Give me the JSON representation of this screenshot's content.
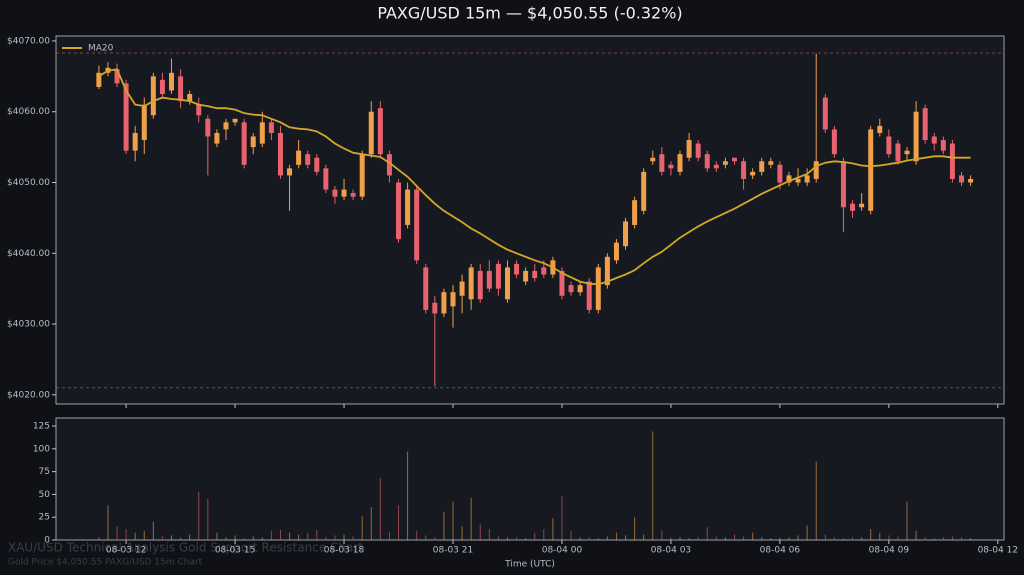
{
  "chart_data": [
    {
      "type": "candlestick",
      "title": "PAXG/USD 15m — $4,050.55 (-0.32%)",
      "annotations": [
        "XAU/USD Technical Analysis Gold Support Resistance Chart",
        "Gold Price $4,050.55 PAXG/USD 15m Chart"
      ],
      "up_color": "#f0a04b",
      "down_color": "#e8636f",
      "x": [
        11.25,
        11.5,
        11.75,
        12,
        12.25,
        12.5,
        12.75,
        13,
        13.25,
        13.5,
        13.75,
        14,
        14.25,
        14.5,
        14.75,
        15,
        15.25,
        15.5,
        15.75,
        16,
        16.25,
        16.5,
        16.75,
        17,
        17.25,
        17.5,
        17.75,
        18,
        18.25,
        18.5,
        18.75,
        19,
        19.25,
        19.5,
        19.75,
        20,
        20.25,
        20.5,
        20.75,
        21,
        21.25,
        21.5,
        21.75,
        22,
        22.25,
        22.5,
        22.75,
        23,
        23.25,
        23.5,
        23.75,
        24,
        24.25,
        24.5,
        24.75,
        25,
        25.25,
        25.5,
        25.75,
        26,
        26.25,
        26.5,
        26.75,
        27,
        27.25,
        27.5,
        27.75,
        28,
        28.25,
        28.5,
        28.75,
        29,
        29.25,
        29.5,
        29.75,
        30,
        30.25,
        30.5,
        30.75,
        31,
        31.25,
        31.5,
        31.75,
        32,
        32.25,
        32.5,
        32.75,
        33,
        33.25,
        33.5,
        33.75,
        34,
        34.25,
        34.5,
        34.75,
        35,
        35.25
      ],
      "open": [
        4063.5,
        4065.5,
        4066,
        4064,
        4054.5,
        4056,
        4059.5,
        4064.5,
        4063,
        4065,
        4061.5,
        4061,
        4059,
        4055.5,
        4057.5,
        4058.5,
        4058.5,
        4055,
        4055.5,
        4058.5,
        4057,
        4051,
        4052.5,
        4054,
        4053.5,
        4052,
        4049,
        4048,
        4048.5,
        4048,
        4054,
        4060.5,
        4054,
        4050,
        4044,
        4049,
        4038,
        4033,
        4031.5,
        4032.5,
        4034,
        4033.5,
        4037.5,
        4037.5,
        4038.5,
        4033.5,
        4038.5,
        4036,
        4037.5,
        4038,
        4037,
        4037.5,
        4035.5,
        4034.5,
        4036,
        4032,
        4035.5,
        4039,
        4041,
        4044,
        4046,
        4053,
        4054,
        4052.5,
        4051.5,
        4053.5,
        4055.5,
        4054,
        4052.5,
        4052.5,
        4053.5,
        4053,
        4051,
        4051.5,
        4052.5,
        4052.5,
        4050,
        4050,
        4050,
        4050.5,
        4062,
        4057.5,
        4053,
        4047,
        4046.5,
        4046,
        4057,
        4056.5,
        4055.5,
        4054,
        4053,
        4060.5,
        4056.5,
        4056,
        4055.5,
        4051,
        4050
      ],
      "high": [
        4066.5,
        4067,
        4066.8,
        4064.5,
        4058,
        4062,
        4065.5,
        4065.5,
        4067.5,
        4066,
        4063,
        4062,
        4059.5,
        4057.5,
        4059,
        4059,
        4059,
        4057,
        4060,
        4059,
        4058,
        4052.5,
        4056,
        4054.5,
        4054,
        4052.5,
        4049.5,
        4050.5,
        4049,
        4054.5,
        4061.5,
        4061.5,
        4054.5,
        4050.5,
        4050,
        4049.5,
        4038.5,
        4034,
        4035,
        4035.5,
        4037,
        4038.5,
        4038.5,
        4039,
        4039,
        4039,
        4039,
        4038,
        4038.5,
        4039,
        4039.5,
        4038,
        4036,
        4036,
        4036.5,
        4038.5,
        4040,
        4042,
        4045,
        4048,
        4052,
        4054.5,
        4055,
        4053,
        4054.5,
        4057,
        4056,
        4054.5,
        4053,
        4053.5,
        4053.5,
        4053.5,
        4052,
        4053.5,
        4053.5,
        4053,
        4051.5,
        4052,
        4052,
        4068.2,
        4062.5,
        4058,
        4053.5,
        4047.5,
        4048.5,
        4058,
        4059,
        4057.5,
        4056,
        4055,
        4061.5,
        4061,
        4057,
        4056.5,
        4056,
        4051.5,
        4051
      ],
      "low": [
        4063.2,
        4065,
        4063.5,
        4054,
        4053,
        4054,
        4059,
        4062,
        4062.5,
        4060.5,
        4061,
        4058.5,
        4051,
        4055,
        4056,
        4058,
        4052,
        4054,
        4055,
        4056,
        4050.5,
        4046,
        4052,
        4052,
        4051,
        4048.5,
        4047,
        4047.5,
        4047.5,
        4047.5,
        4053.5,
        4053.5,
        4050,
        4041.5,
        4043.5,
        4038.5,
        4031.5,
        4021.2,
        4031,
        4029.5,
        4031.5,
        4032,
        4033,
        4034.5,
        4034,
        4033,
        4036.5,
        4035.5,
        4036,
        4036.5,
        4036.5,
        4033.5,
        4034,
        4034,
        4031.5,
        4031.5,
        4035,
        4038.5,
        4040.5,
        4043.5,
        4045.5,
        4052.5,
        4051,
        4051,
        4051,
        4053,
        4053,
        4051.5,
        4051.5,
        4052,
        4052.5,
        4049,
        4050.5,
        4051,
        4052,
        4049,
        4049.5,
        4049.5,
        4049.5,
        4050,
        4057,
        4053.5,
        4043,
        4045,
        4046,
        4045.5,
        4056.5,
        4053.5,
        4052.5,
        4053,
        4052.5,
        4055.5,
        4054.5,
        4054,
        4050,
        4049.5,
        4049.5
      ],
      "close": [
        4065.5,
        4066.2,
        4064,
        4054.5,
        4057,
        4061,
        4065,
        4062.5,
        4065.5,
        4061.5,
        4062.5,
        4059.5,
        4056.5,
        4057,
        4058.5,
        4059,
        4052.5,
        4056.5,
        4058.5,
        4057,
        4051,
        4052,
        4054.5,
        4052.5,
        4051.5,
        4049,
        4048,
        4049,
        4048,
        4054,
        4060,
        4054,
        4051,
        4042,
        4049,
        4039,
        4032,
        4031.5,
        4034.5,
        4034.5,
        4036,
        4038,
        4033.5,
        4035,
        4035,
        4038,
        4037,
        4037.5,
        4036.5,
        4037,
        4039,
        4034,
        4034.5,
        4035.5,
        4032,
        4038,
        4039.5,
        4041.5,
        4044.5,
        4047.5,
        4051.5,
        4053.5,
        4051.5,
        4052,
        4054,
        4056,
        4053.5,
        4052,
        4052,
        4053,
        4053,
        4050.5,
        4051.5,
        4053,
        4053,
        4050,
        4051,
        4050.5,
        4051,
        4053,
        4057.5,
        4054,
        4046.5,
        4046,
        4047,
        4057.5,
        4058,
        4054,
        4053,
        4054.5,
        4060,
        4056,
        4055.5,
        4054.5,
        4050.5,
        4050,
        4050.5
      ],
      "series": [
        {
          "name": "MA20",
          "color": "#d4a62a",
          "values": [
            4065,
            4065.8,
            4066,
            4063,
            4061,
            4060.8,
            4061.5,
            4062,
            4061.8,
            4061.7,
            4061.5,
            4061,
            4060.8,
            4060.5,
            4060.5,
            4060.3,
            4059.8,
            4059.6,
            4059.5,
            4059,
            4058.5,
            4057.8,
            4057.6,
            4057.5,
            4057.2,
            4056.5,
            4055.5,
            4054.8,
            4054.2,
            4054,
            4053.8,
            4053.6,
            4052.8,
            4051.8,
            4050.8,
            4049.5,
            4048.2,
            4047,
            4046,
            4045.2,
            4044.4,
            4043.5,
            4042.8,
            4042,
            4041.2,
            4040.5,
            4040,
            4039.5,
            4039,
            4038.6,
            4038,
            4037.2,
            4036.6,
            4036,
            4035.7,
            4035.6,
            4036,
            4036.5,
            4037,
            4037.6,
            4038.6,
            4039.5,
            4040.2,
            4041.2,
            4042.2,
            4043,
            4043.8,
            4044.5,
            4045.1,
            4045.7,
            4046.3,
            4047,
            4047.7,
            4048.4,
            4049,
            4049.6,
            4050.2,
            4050.7,
            4051.2,
            4052.3,
            4052.8,
            4053,
            4052.9,
            4052.7,
            4052.4,
            4052.3,
            4052.4,
            4052.6,
            4052.8,
            4053.1,
            4053.3,
            4053.5,
            4053.7,
            4053.7,
            4053.5,
            4053.5,
            4053.5
          ]
        }
      ],
      "resistance": 4068.3,
      "support": 4021.0,
      "xlim": [
        10.07,
        36.17
      ],
      "ylim": [
        4018.7,
        4070.7
      ],
      "yticks": [
        {
          "value": 4020,
          "label": "$4020.00"
        },
        {
          "value": 4030,
          "label": "$4030.00"
        },
        {
          "value": 4040,
          "label": "$4040.00"
        },
        {
          "value": 4050,
          "label": "$4050.00"
        },
        {
          "value": 4060,
          "label": "$4060.00"
        },
        {
          "value": 4070,
          "label": "$4070.00"
        }
      ],
      "legend": "upper left"
    },
    {
      "type": "bar",
      "x_label": "Time (UTC)",
      "values": [
        3,
        38,
        15,
        12,
        8,
        10,
        20,
        4,
        5,
        3,
        6,
        53,
        45,
        8,
        3,
        5,
        2,
        4,
        3,
        10,
        11,
        8,
        6,
        8,
        11,
        3,
        5,
        6,
        4,
        26,
        36,
        68,
        9,
        38,
        97,
        10,
        5,
        3,
        31,
        42,
        15,
        46,
        17,
        12,
        4,
        3,
        3,
        2,
        8,
        12,
        24,
        48,
        10,
        3,
        3,
        2,
        4,
        8,
        5,
        25,
        6,
        119,
        10,
        3,
        3,
        2,
        3,
        14,
        4,
        3,
        6,
        4,
        8,
        3,
        2,
        3,
        3,
        5,
        16,
        86,
        6,
        3,
        2,
        3,
        3,
        12,
        8,
        5,
        4,
        42,
        10,
        3,
        2,
        3,
        4,
        3,
        2
      ],
      "ylim": [
        0,
        133.8
      ],
      "yticks": [
        0,
        25,
        50,
        75,
        100,
        125
      ],
      "xlim": [
        10.07,
        36.17
      ],
      "xticks": [
        {
          "value": 12,
          "label": "08-03 12"
        },
        {
          "value": 15,
          "label": "08-03 15"
        },
        {
          "value": 18,
          "label": "08-03 18"
        },
        {
          "value": 21,
          "label": "08-03 21"
        },
        {
          "value": 24,
          "label": "08-04 00"
        },
        {
          "value": 27,
          "label": "08-04 03"
        },
        {
          "value": 30,
          "label": "08-04 06"
        },
        {
          "value": 33,
          "label": "08-04 09"
        },
        {
          "value": 36,
          "label": "08-04 12"
        }
      ]
    }
  ]
}
